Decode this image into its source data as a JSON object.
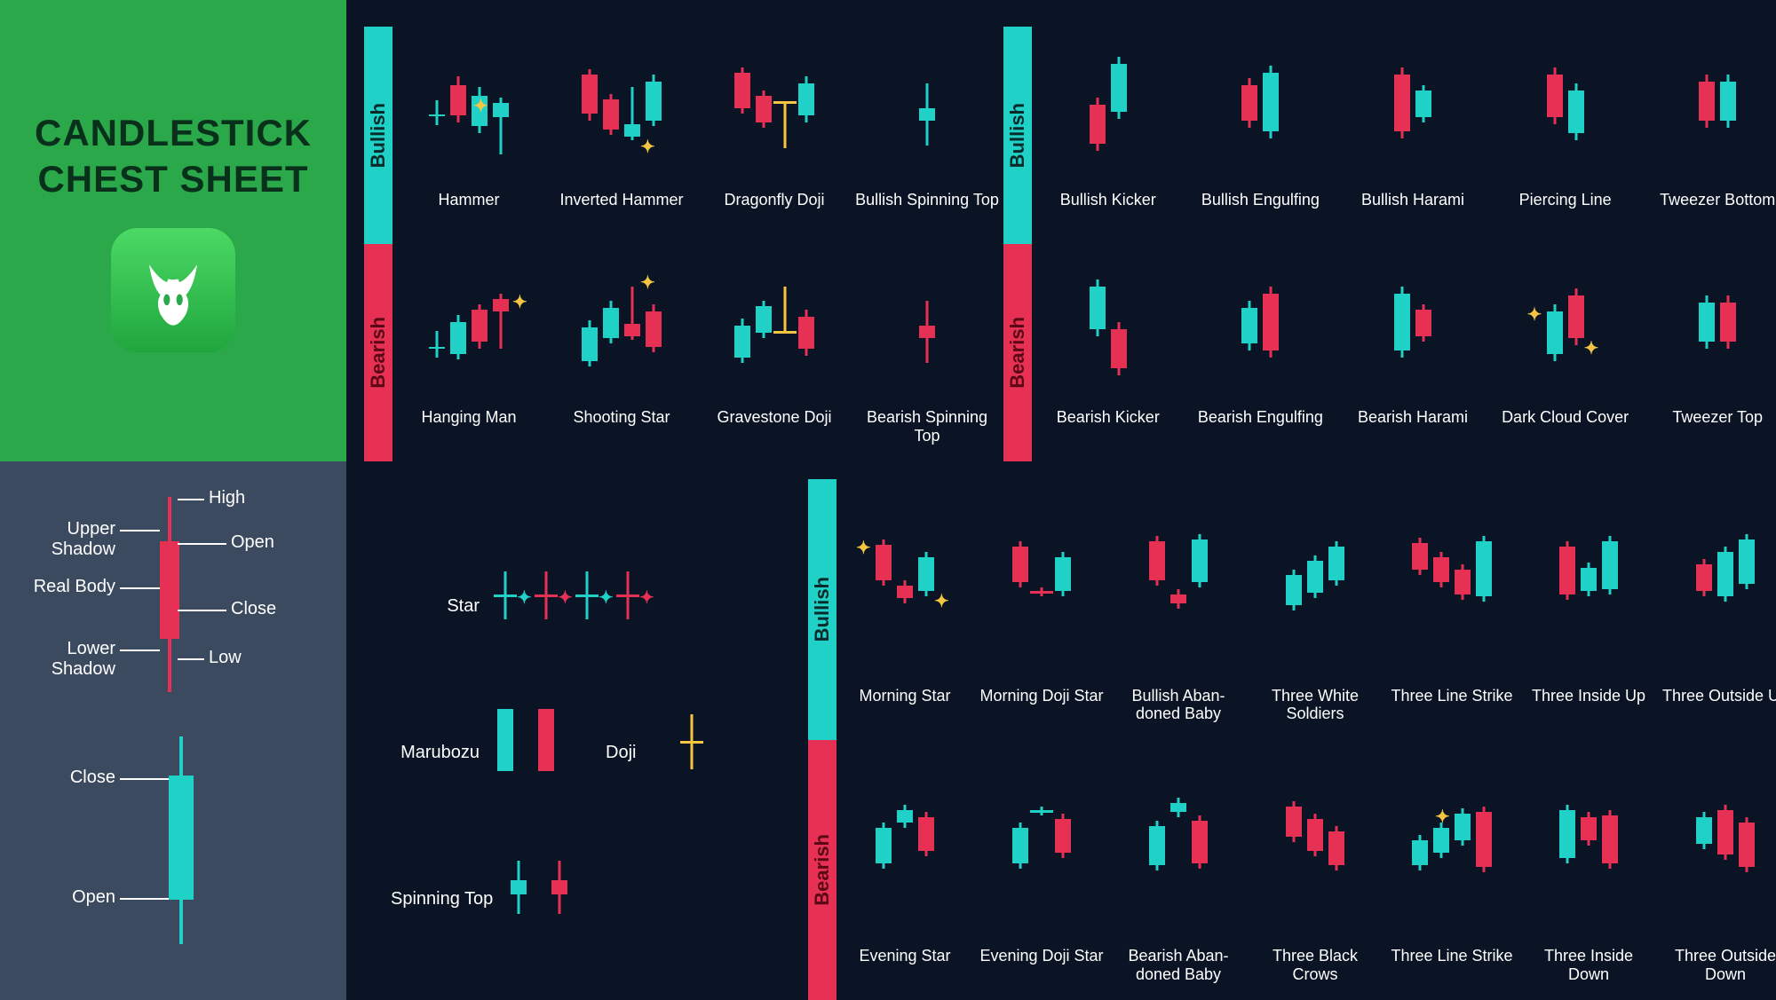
{
  "colors": {
    "page_bg": "#0a1424",
    "header_bg": "#2aa84a",
    "anatomy_bg": "#3b4a5e",
    "text": "#ffffff",
    "bull": "#1fd1c6",
    "bear": "#e63154",
    "accent_yellow": "#f5c542",
    "wick_dark": "#0f2236",
    "tab_bull_bg": "#1fd1c6",
    "tab_bear_bg": "#e63154",
    "tab_text": "#0a2a2a",
    "tab_bear_text": "#5a0815",
    "icon_bg_top": "#4cd964",
    "icon_bg_bot": "#1fa63e",
    "title_color": "#08301a"
  },
  "title_line1": "CANDLESTICK",
  "title_line2": "CHEST SHEET",
  "side_labels": {
    "bull": "Bullish",
    "bear": "Bearish"
  },
  "anatomy": {
    "red": {
      "labels": [
        "Upper Shadow",
        "Real Body",
        "Lower Shadow",
        "High",
        "Open",
        "Close",
        "Low"
      ]
    },
    "green": {
      "labels": [
        "Close",
        "Open"
      ]
    }
  },
  "basic_patterns": {
    "star": {
      "label": "Star"
    },
    "marubozu": {
      "label": "Marubozu"
    },
    "doji": {
      "label": "Doji"
    },
    "spinningtop": {
      "label": "Spinning Top"
    }
  },
  "panel1": {
    "cols": 4,
    "bull": [
      {
        "name": "Hammer"
      },
      {
        "name": "Inverted Hammer"
      },
      {
        "name": "Dragonfly Doji"
      },
      {
        "name": "Bullish Spinning Top"
      }
    ],
    "bear": [
      {
        "name": "Hanging Man"
      },
      {
        "name": "Shooting Star"
      },
      {
        "name": "Gravestone Doji"
      },
      {
        "name": "Bearish Spinning Top"
      }
    ]
  },
  "panel2": {
    "cols": 5,
    "bull": [
      {
        "name": "Bullish Kicker"
      },
      {
        "name": "Bullish Engulfing"
      },
      {
        "name": "Bullish Harami"
      },
      {
        "name": "Piercing Line"
      },
      {
        "name": "Tweezer Bottom"
      }
    ],
    "bear": [
      {
        "name": "Bearish Kicker"
      },
      {
        "name": "Bearish Engulfing"
      },
      {
        "name": "Bearish Harami"
      },
      {
        "name": "Dark Cloud Cover"
      },
      {
        "name": "Tweezer Top"
      }
    ]
  },
  "panel3": {
    "cols": 7,
    "bull": [
      {
        "name": "Morning Star"
      },
      {
        "name": "Morning Doji Star"
      },
      {
        "name": "Bullish Aban- doned Baby"
      },
      {
        "name": "Three White Soldiers"
      },
      {
        "name": "Three Line Strike"
      },
      {
        "name": "Three Inside Up"
      },
      {
        "name": "Three Outside Up"
      }
    ],
    "bear": [
      {
        "name": "Evening Star"
      },
      {
        "name": "Evening Doji Star"
      },
      {
        "name": "Bearish Aban- doned Baby"
      },
      {
        "name": "Three Black Crows"
      },
      {
        "name": "Three Line Strike"
      },
      {
        "name": "Three Inside Down"
      },
      {
        "name": "Three Outside Down"
      }
    ]
  },
  "candle_defs": {
    "_comment": "Each candle: {c: bull|bear|yellow, wt: wick-top px, wb: wick-bottom px, bh: body-height px, y: vertical offset px (top of whole candle from container top in a 140px-tall stage), plus?: left|right|top for sparkle}",
    "panel1": {
      "bull": [
        [
          {
            "c": "bull",
            "wt": 16,
            "wb": 10,
            "bh": 2,
            "y": 55
          },
          {
            "c": "bear",
            "wt": 10,
            "wb": 8,
            "bh": 34,
            "y": 28
          },
          {
            "c": "bull",
            "wt": 10,
            "wb": 8,
            "bh": 34,
            "y": 40
          },
          {
            "c": "bull",
            "wt": 6,
            "wb": 42,
            "bh": 16,
            "y": 52,
            "plus": "left"
          }
        ],
        [
          {
            "c": "bear",
            "wt": 6,
            "wb": 8,
            "bh": 44,
            "y": 20
          },
          {
            "c": "bear",
            "wt": 6,
            "wb": 6,
            "bh": 34,
            "y": 48
          },
          {
            "c": "bull",
            "wt": 42,
            "wb": 4,
            "bh": 14,
            "y": 40,
            "plus": "bot"
          },
          {
            "c": "bull",
            "wt": 8,
            "wb": 6,
            "bh": 44,
            "y": 26
          }
        ],
        [
          {
            "c": "bear",
            "wt": 6,
            "wb": 6,
            "bh": 40,
            "y": 18
          },
          {
            "c": "bear",
            "wt": 6,
            "wb": 6,
            "bh": 30,
            "y": 44
          },
          {
            "c": "yellow",
            "wt": 0,
            "wb": 50,
            "bh": 3,
            "y": 56,
            "cross": true
          },
          {
            "c": "bull",
            "wt": 8,
            "wb": 8,
            "bh": 36,
            "y": 28
          }
        ],
        [
          {
            "c": "bull",
            "wt": 28,
            "wb": 28,
            "bh": 14,
            "y": 36
          }
        ]
      ],
      "bear": [
        [
          {
            "c": "bull",
            "wt": 18,
            "wb": 10,
            "bh": 2,
            "y": 70
          },
          {
            "c": "bull",
            "wt": 8,
            "wb": 6,
            "bh": 36,
            "y": 52
          },
          {
            "c": "bear",
            "wt": 6,
            "wb": 8,
            "bh": 36,
            "y": 40
          },
          {
            "c": "bear",
            "wt": 6,
            "wb": 42,
            "bh": 14,
            "y": 28,
            "plus": "right"
          }
        ],
        [
          {
            "c": "bull",
            "wt": 8,
            "wb": 6,
            "bh": 38,
            "y": 58
          },
          {
            "c": "bull",
            "wt": 8,
            "wb": 6,
            "bh": 34,
            "y": 36
          },
          {
            "c": "bear",
            "wt": 42,
            "wb": 4,
            "bh": 14,
            "y": 20,
            "plus": "top"
          },
          {
            "c": "bear",
            "wt": 8,
            "wb": 6,
            "bh": 40,
            "y": 40
          }
        ],
        [
          {
            "c": "bull",
            "wt": 8,
            "wb": 6,
            "bh": 36,
            "y": 56
          },
          {
            "c": "bull",
            "wt": 6,
            "wb": 6,
            "bh": 30,
            "y": 36
          },
          {
            "c": "yellow",
            "wt": 50,
            "wb": 0,
            "bh": 3,
            "y": 20,
            "cross": true
          },
          {
            "c": "bear",
            "wt": 8,
            "wb": 8,
            "bh": 36,
            "y": 46
          }
        ],
        [
          {
            "c": "bear",
            "wt": 28,
            "wb": 28,
            "bh": 14,
            "y": 36
          }
        ]
      ]
    },
    "panel2": {
      "bull": [
        [
          {
            "c": "bear",
            "wt": 8,
            "wb": 8,
            "bh": 44,
            "y": 52
          },
          {
            "c": "bull",
            "wt": 8,
            "wb": 8,
            "bh": 54,
            "y": 6
          }
        ],
        [
          {
            "c": "bear",
            "wt": 8,
            "wb": 8,
            "bh": 40,
            "y": 30
          },
          {
            "c": "bull",
            "wt": 8,
            "wb": 8,
            "bh": 66,
            "y": 16
          }
        ],
        [
          {
            "c": "bear",
            "wt": 8,
            "wb": 8,
            "bh": 64,
            "y": 18
          },
          {
            "c": "bull",
            "wt": 6,
            "wb": 6,
            "bh": 30,
            "y": 38
          }
        ],
        [
          {
            "c": "bear",
            "wt": 8,
            "wb": 8,
            "bh": 48,
            "y": 18
          },
          {
            "c": "bull",
            "wt": 8,
            "wb": 8,
            "bh": 48,
            "y": 36
          }
        ],
        [
          {
            "c": "bear",
            "wt": 8,
            "wb": 8,
            "bh": 44,
            "y": 26
          },
          {
            "c": "bull",
            "wt": 8,
            "wb": 8,
            "bh": 44,
            "y": 26
          }
        ]
      ],
      "bear": [
        [
          {
            "c": "bull",
            "wt": 8,
            "wb": 8,
            "bh": 48,
            "y": 12
          },
          {
            "c": "bear",
            "wt": 8,
            "wb": 8,
            "bh": 44,
            "y": 60
          }
        ],
        [
          {
            "c": "bull",
            "wt": 8,
            "wb": 8,
            "bh": 40,
            "y": 36
          },
          {
            "c": "bear",
            "wt": 8,
            "wb": 8,
            "bh": 64,
            "y": 20
          }
        ],
        [
          {
            "c": "bull",
            "wt": 8,
            "wb": 8,
            "bh": 64,
            "y": 20
          },
          {
            "c": "bear",
            "wt": 6,
            "wb": 6,
            "bh": 30,
            "y": 40
          }
        ],
        [
          {
            "c": "bull",
            "wt": 8,
            "wb": 8,
            "bh": 48,
            "y": 40,
            "plus": "left"
          },
          {
            "c": "bear",
            "wt": 8,
            "wb": 8,
            "bh": 48,
            "y": 22,
            "plus": "bot"
          }
        ],
        [
          {
            "c": "bull",
            "wt": 8,
            "wb": 8,
            "bh": 44,
            "y": 30
          },
          {
            "c": "bear",
            "wt": 8,
            "wb": 8,
            "bh": 44,
            "y": 30
          }
        ]
      ]
    },
    "panel3": {
      "bull": [
        [
          {
            "c": "bear",
            "wt": 6,
            "wb": 6,
            "bh": 40,
            "y": 16,
            "plus": "left"
          },
          {
            "c": "bear",
            "wt": 6,
            "wb": 6,
            "bh": 14,
            "y": 62
          },
          {
            "c": "bull",
            "wt": 6,
            "wb": 6,
            "bh": 38,
            "y": 30,
            "plus": "bot"
          }
        ],
        [
          {
            "c": "bear",
            "wt": 6,
            "wb": 6,
            "bh": 40,
            "y": 18
          },
          {
            "c": "bear",
            "wt": 4,
            "wb": 4,
            "bh": 2,
            "y": 70,
            "cross": true
          },
          {
            "c": "bull",
            "wt": 6,
            "wb": 6,
            "bh": 38,
            "y": 30
          }
        ],
        [
          {
            "c": "bear",
            "wt": 6,
            "wb": 6,
            "bh": 44,
            "y": 12
          },
          {
            "c": "bear",
            "wt": 6,
            "wb": 6,
            "bh": 10,
            "y": 72
          },
          {
            "c": "bull",
            "wt": 6,
            "wb": 6,
            "bh": 48,
            "y": 10
          }
        ],
        [
          {
            "c": "bull",
            "wt": 6,
            "wb": 6,
            "bh": 34,
            "y": 50
          },
          {
            "c": "bull",
            "wt": 6,
            "wb": 6,
            "bh": 36,
            "y": 34
          },
          {
            "c": "bull",
            "wt": 6,
            "wb": 6,
            "bh": 38,
            "y": 18
          }
        ],
        [
          {
            "c": "bear",
            "wt": 6,
            "wb": 6,
            "bh": 30,
            "y": 14
          },
          {
            "c": "bear",
            "wt": 6,
            "wb": 6,
            "bh": 28,
            "y": 30
          },
          {
            "c": "bear",
            "wt": 6,
            "wb": 6,
            "bh": 28,
            "y": 44
          },
          {
            "c": "bull",
            "wt": 6,
            "wb": 6,
            "bh": 62,
            "y": 12
          }
        ],
        [
          {
            "c": "bear",
            "wt": 6,
            "wb": 6,
            "bh": 54,
            "y": 18
          },
          {
            "c": "bull",
            "wt": 6,
            "wb": 6,
            "bh": 26,
            "y": 42
          },
          {
            "c": "bull",
            "wt": 6,
            "wb": 6,
            "bh": 54,
            "y": 12
          }
        ],
        [
          {
            "c": "bear",
            "wt": 6,
            "wb": 6,
            "bh": 30,
            "y": 38
          },
          {
            "c": "bull",
            "wt": 6,
            "wb": 6,
            "bh": 50,
            "y": 24
          },
          {
            "c": "bull",
            "wt": 6,
            "wb": 6,
            "bh": 50,
            "y": 10
          }
        ]
      ],
      "bear": [
        [
          {
            "c": "bull",
            "wt": 6,
            "wb": 6,
            "bh": 40,
            "y": 42
          },
          {
            "c": "bull",
            "wt": 6,
            "wb": 6,
            "bh": 14,
            "y": 22
          },
          {
            "c": "bear",
            "wt": 6,
            "wb": 6,
            "bh": 38,
            "y": 30
          }
        ],
        [
          {
            "c": "bull",
            "wt": 6,
            "wb": 6,
            "bh": 40,
            "y": 42
          },
          {
            "c": "bull",
            "wt": 4,
            "wb": 4,
            "bh": 2,
            "y": 24,
            "cross": true
          },
          {
            "c": "bear",
            "wt": 6,
            "wb": 6,
            "bh": 38,
            "y": 32
          }
        ],
        [
          {
            "c": "bull",
            "wt": 6,
            "wb": 6,
            "bh": 44,
            "y": 40
          },
          {
            "c": "bull",
            "wt": 6,
            "wb": 6,
            "bh": 10,
            "y": 14
          },
          {
            "c": "bear",
            "wt": 6,
            "wb": 6,
            "bh": 48,
            "y": 34
          }
        ],
        [
          {
            "c": "bear",
            "wt": 6,
            "wb": 6,
            "bh": 34,
            "y": 18
          },
          {
            "c": "bear",
            "wt": 6,
            "wb": 6,
            "bh": 36,
            "y": 32
          },
          {
            "c": "bear",
            "wt": 6,
            "wb": 6,
            "bh": 38,
            "y": 46
          }
        ],
        [
          {
            "c": "bull",
            "wt": 6,
            "wb": 6,
            "bh": 28,
            "y": 56
          },
          {
            "c": "bull",
            "wt": 6,
            "wb": 6,
            "bh": 28,
            "y": 42
          },
          {
            "c": "bull",
            "wt": 6,
            "wb": 6,
            "bh": 30,
            "y": 26,
            "plus": "left"
          },
          {
            "c": "bear",
            "wt": 6,
            "wb": 6,
            "bh": 62,
            "y": 24
          }
        ],
        [
          {
            "c": "bull",
            "wt": 6,
            "wb": 6,
            "bh": 54,
            "y": 22
          },
          {
            "c": "bear",
            "wt": 6,
            "wb": 6,
            "bh": 26,
            "y": 30
          },
          {
            "c": "bear",
            "wt": 6,
            "wb": 6,
            "bh": 54,
            "y": 28
          }
        ],
        [
          {
            "c": "bull",
            "wt": 6,
            "wb": 6,
            "bh": 30,
            "y": 30
          },
          {
            "c": "bear",
            "wt": 6,
            "wb": 6,
            "bh": 50,
            "y": 22
          },
          {
            "c": "bear",
            "wt": 6,
            "wb": 6,
            "bh": 50,
            "y": 36
          }
        ]
      ]
    },
    "basic": {
      "star": [
        {
          "c": "bull",
          "wt": 26,
          "wb": 26,
          "bh": 2,
          "y": 30,
          "cross": true,
          "plus": "right",
          "plusColor": "bull"
        },
        {
          "c": "bear",
          "wt": 26,
          "wb": 26,
          "bh": 2,
          "y": 30,
          "cross": true,
          "plus": "right",
          "plusColor": "bear"
        },
        {
          "c": "bull",
          "wt": 26,
          "wb": 26,
          "bh": 2,
          "y": 30,
          "cross": true,
          "plus": "right",
          "plusColor": "bull"
        },
        {
          "c": "bear",
          "wt": 26,
          "wb": 26,
          "bh": 2,
          "y": 30,
          "cross": true,
          "plus": "right",
          "plusColor": "bear"
        }
      ],
      "marubozu": [
        {
          "c": "bull",
          "wt": 0,
          "wb": 0,
          "bh": 70,
          "y": 20
        },
        {
          "c": "bear",
          "wt": 0,
          "wb": 0,
          "bh": 70,
          "y": 20
        }
      ],
      "doji": [
        {
          "c": "yellow",
          "wt": 30,
          "wb": 30,
          "bh": 2,
          "y": 26,
          "cross": true
        }
      ],
      "spinningtop": [
        {
          "c": "bull",
          "wt": 22,
          "wb": 22,
          "bh": 16,
          "y": 26
        },
        {
          "c": "bear",
          "wt": 22,
          "wb": 22,
          "bh": 16,
          "y": 26
        }
      ]
    }
  }
}
